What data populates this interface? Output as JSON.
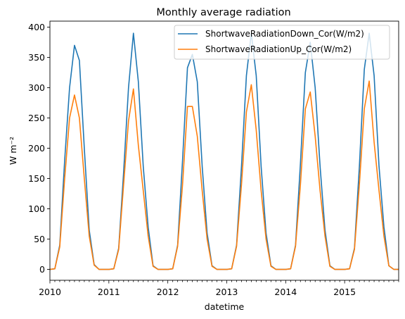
{
  "chart_data": {
    "type": "line",
    "title": "Monthly average radiation",
    "xlabel": "datetime",
    "ylabel": "W m⁻²",
    "ylim": [
      -18,
      410
    ],
    "yticks": [
      0,
      50,
      100,
      150,
      200,
      250,
      300,
      350,
      400
    ],
    "xticks": [
      "2010",
      "2011",
      "2012",
      "2013",
      "2014",
      "2015"
    ],
    "x_start": "2010-01",
    "x_end": "2015-12",
    "grid": false,
    "legend_position": "top-right",
    "series": [
      {
        "name": "ShortwaveRadiationDown_Cor(W/m2)",
        "color": "#1f77b4",
        "values": [
          0,
          1,
          40,
          180,
          300,
          370,
          345,
          200,
          65,
          8,
          0,
          0,
          0,
          1,
          35,
          160,
          300,
          390,
          310,
          170,
          70,
          6,
          0,
          0,
          0,
          1,
          40,
          180,
          333,
          355,
          310,
          170,
          60,
          6,
          0,
          0,
          0,
          1,
          40,
          170,
          320,
          390,
          320,
          170,
          60,
          6,
          0,
          0,
          0,
          1,
          40,
          175,
          325,
          375,
          300,
          170,
          65,
          6,
          0,
          0,
          0,
          1,
          35,
          170,
          330,
          390,
          320,
          170,
          70,
          6,
          0,
          0
        ]
      },
      {
        "name": "ShortwaveRadiationUp_Cor(W/m2)",
        "color": "#ff7f0e",
        "values": [
          0,
          1,
          37,
          150,
          250,
          288,
          250,
          150,
          55,
          7,
          0,
          0,
          0,
          1,
          33,
          140,
          245,
          298,
          205,
          130,
          55,
          5,
          0,
          0,
          0,
          1,
          38,
          140,
          269,
          269,
          220,
          130,
          50,
          5,
          0,
          0,
          0,
          1,
          38,
          140,
          260,
          305,
          230,
          130,
          50,
          5,
          0,
          0,
          0,
          1,
          38,
          140,
          265,
          293,
          220,
          130,
          55,
          5,
          0,
          0,
          0,
          1,
          33,
          140,
          265,
          311,
          210,
          130,
          55,
          6,
          0,
          0
        ]
      }
    ]
  }
}
